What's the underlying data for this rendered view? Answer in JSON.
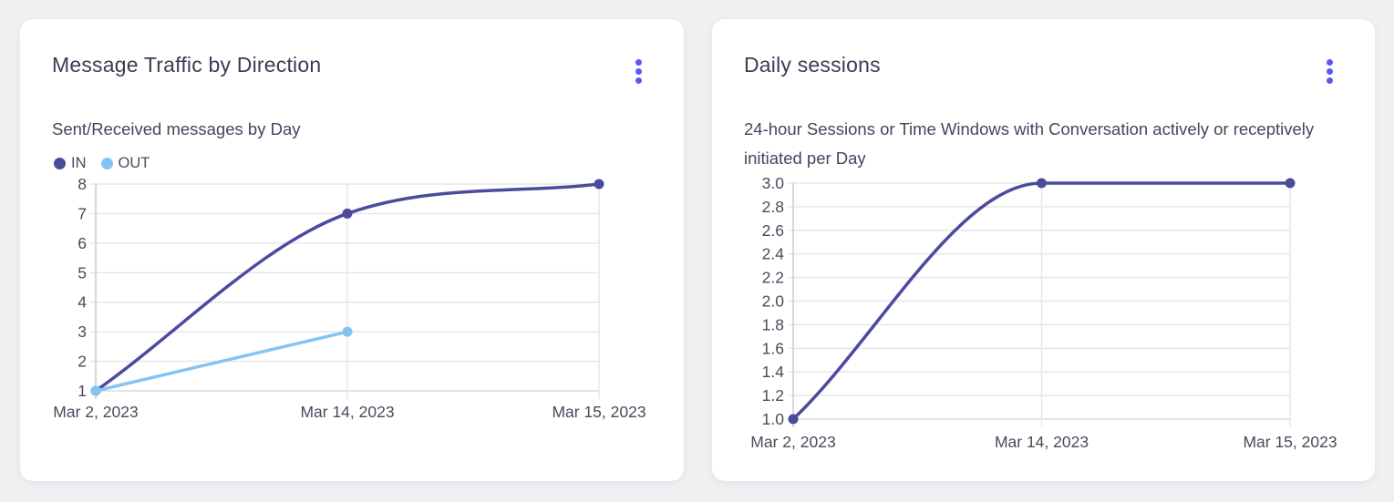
{
  "page": {
    "accent_color": "#5a58f2",
    "background_color": "#f0f0f3"
  },
  "cards": [
    {
      "menu_icon": "kebab-menu-icon"
    },
    {
      "menu_icon": "kebab-menu-icon"
    }
  ],
  "chart_data": [
    {
      "type": "line",
      "title": "Message Traffic by Direction",
      "subtitle": "Sent/Received messages by Day",
      "categories": [
        "Mar 2, 2023",
        "Mar 14, 2023",
        "Mar 15, 2023"
      ],
      "series": [
        {
          "name": "IN",
          "color": "#4b4b9d",
          "values": [
            1,
            7,
            8
          ]
        },
        {
          "name": "OUT",
          "color": "#84c4f4",
          "values": [
            1,
            3,
            null
          ]
        }
      ],
      "ylim": [
        1,
        8
      ],
      "ystep": 1,
      "y_decimals": 0,
      "xlabel": "",
      "ylabel": "",
      "grid": true,
      "legend_position": "top-left",
      "smooth": "monotone"
    },
    {
      "type": "line",
      "title": "Daily sessions",
      "subtitle": "24-hour Sessions or Time Windows with Conversation actively or receptively initiated per Day",
      "categories": [
        "Mar 2, 2023",
        "Mar 14, 2023",
        "Mar 15, 2023"
      ],
      "series": [
        {
          "name": "Daily sessions",
          "color": "#4b4b9d",
          "values": [
            1.0,
            3.0,
            3.0
          ]
        }
      ],
      "ylim": [
        1.0,
        3.0
      ],
      "ystep": 0.2,
      "y_decimals": 1,
      "xlabel": "",
      "ylabel": "",
      "grid": true,
      "legend_position": "none",
      "smooth": "monotone"
    }
  ]
}
